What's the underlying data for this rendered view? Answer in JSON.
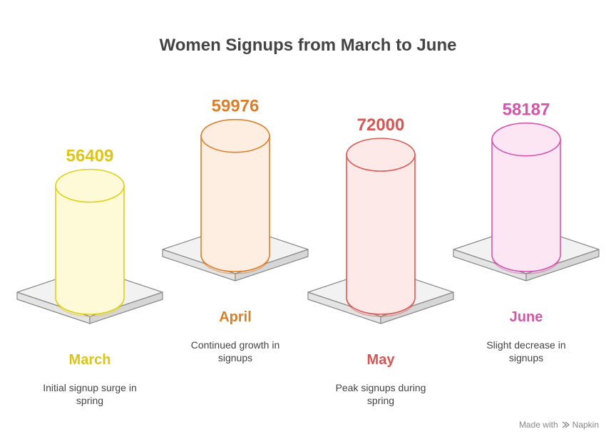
{
  "chart_data": {
    "type": "bar",
    "title": "Women Signups from March to June",
    "categories": [
      "March",
      "April",
      "May",
      "June"
    ],
    "values": [
      56409,
      59976,
      72000,
      58187
    ],
    "descriptions": [
      [
        "Initial signup surge in",
        "spring"
      ],
      [
        "Continued growth in",
        "signups"
      ],
      [
        "Peak signups during",
        "spring"
      ],
      [
        "Slight decrease in",
        "signups"
      ]
    ],
    "colors": {
      "stroke": [
        "#e2cf1a",
        "#de7f2a",
        "#dc5a56",
        "#d655ac"
      ],
      "fill": [
        "#fefad8",
        "#fdeee1",
        "#fde9e7",
        "#fce6f4"
      ],
      "text": [
        "#dcc515",
        "#d8812a",
        "#d65654",
        "#d455aa"
      ]
    }
  },
  "footer": {
    "made_with": "Made with",
    "brand": "Napkin"
  }
}
